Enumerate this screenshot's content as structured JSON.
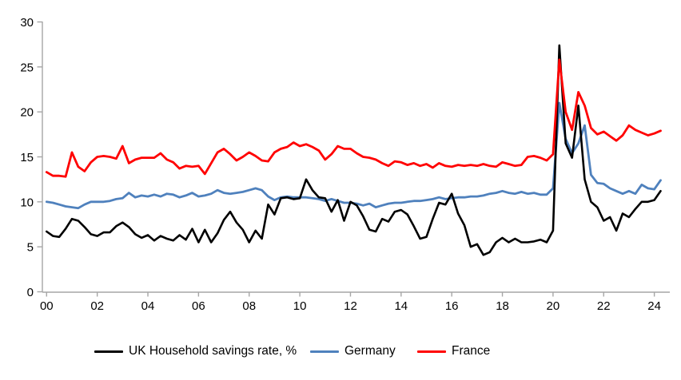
{
  "ui": {
    "axis_color": "#A6A6A6",
    "text_color": "#000000",
    "background": "#FFFFFF"
  },
  "chart_data": {
    "type": "line",
    "title": "",
    "xlabel": "",
    "ylabel": "",
    "grid": false,
    "legend_position": "bottom",
    "x_start": 2000,
    "x_step": 0.25,
    "x_unit": "quarterly, 2000Q1-2024Q2",
    "xlim": [
      2000,
      2024.6
    ],
    "ylim": [
      0,
      30
    ],
    "y_ticks": [
      0,
      5,
      10,
      15,
      20,
      25,
      30
    ],
    "x_tick_labels": [
      "00",
      "02",
      "04",
      "06",
      "08",
      "10",
      "12",
      "14",
      "16",
      "18",
      "20",
      "22",
      "24"
    ],
    "series": [
      {
        "id": "uk",
        "name": "UK Household savings rate, %",
        "color": "#000000",
        "width": 2.6,
        "values": [
          6.7,
          6.2,
          6.1,
          7.0,
          8.1,
          7.9,
          7.2,
          6.4,
          6.2,
          6.6,
          6.6,
          7.3,
          7.7,
          7.2,
          6.4,
          6.0,
          6.3,
          5.7,
          6.2,
          5.9,
          5.7,
          6.3,
          5.8,
          7.0,
          5.5,
          6.9,
          5.5,
          6.5,
          8.0,
          8.9,
          7.7,
          6.9,
          5.5,
          6.8,
          5.9,
          9.7,
          8.6,
          10.4,
          10.5,
          10.3,
          10.4,
          12.5,
          11.3,
          10.5,
          10.4,
          8.9,
          10.2,
          7.9,
          10.0,
          9.6,
          8.4,
          6.9,
          6.7,
          8.1,
          7.8,
          8.9,
          9.1,
          8.6,
          7.3,
          5.9,
          6.1,
          8.1,
          9.9,
          9.7,
          10.9,
          8.7,
          7.4,
          5.0,
          5.3,
          4.1,
          4.4,
          5.5,
          6.0,
          5.5,
          5.9,
          5.5,
          5.5,
          5.6,
          5.8,
          5.5,
          6.8,
          27.4,
          16.5,
          14.9,
          20.7,
          12.5,
          10.0,
          9.4,
          7.9,
          8.3,
          6.8,
          8.7,
          8.3,
          9.2,
          10.0,
          10.0,
          10.2,
          11.2
        ]
      },
      {
        "id": "germany",
        "name": "Germany",
        "color": "#4F81BD",
        "width": 2.8,
        "values": [
          10.0,
          9.9,
          9.7,
          9.5,
          9.4,
          9.3,
          9.7,
          10.0,
          10.0,
          10.0,
          10.1,
          10.3,
          10.4,
          11.0,
          10.5,
          10.7,
          10.6,
          10.8,
          10.6,
          10.9,
          10.8,
          10.5,
          10.7,
          11.0,
          10.6,
          10.7,
          10.9,
          11.3,
          11.0,
          10.9,
          11.0,
          11.1,
          11.3,
          11.5,
          11.3,
          10.6,
          10.2,
          10.5,
          10.6,
          10.5,
          10.5,
          10.5,
          10.4,
          10.3,
          10.1,
          10.3,
          10.1,
          9.9,
          9.9,
          9.8,
          9.6,
          9.8,
          9.4,
          9.6,
          9.8,
          9.9,
          9.9,
          10.0,
          10.1,
          10.1,
          10.2,
          10.3,
          10.5,
          10.3,
          10.4,
          10.5,
          10.5,
          10.6,
          10.6,
          10.7,
          10.9,
          11.0,
          11.2,
          11.0,
          10.9,
          11.1,
          10.9,
          11.0,
          10.8,
          10.8,
          11.5,
          21.0,
          17.0,
          15.4,
          16.5,
          18.5,
          13.0,
          12.1,
          12.0,
          11.5,
          11.2,
          10.9,
          11.2,
          10.9,
          11.9,
          11.5,
          11.4,
          12.4
        ]
      },
      {
        "id": "france",
        "name": "France",
        "color": "#FF0000",
        "width": 2.8,
        "values": [
          13.3,
          12.9,
          12.9,
          12.8,
          15.5,
          13.9,
          13.4,
          14.4,
          15.0,
          15.1,
          15.0,
          14.8,
          16.2,
          14.3,
          14.7,
          14.9,
          14.9,
          14.9,
          15.4,
          14.7,
          14.4,
          13.7,
          14.0,
          13.9,
          14.0,
          13.1,
          14.3,
          15.5,
          15.9,
          15.3,
          14.6,
          15.0,
          15.5,
          15.1,
          14.6,
          14.5,
          15.5,
          15.9,
          16.1,
          16.6,
          16.2,
          16.4,
          16.1,
          15.7,
          14.7,
          15.3,
          16.2,
          15.9,
          15.9,
          15.4,
          15.0,
          14.9,
          14.7,
          14.3,
          14.0,
          14.5,
          14.4,
          14.1,
          14.3,
          14.0,
          14.2,
          13.8,
          14.3,
          14.0,
          13.9,
          14.1,
          14.0,
          14.1,
          14.0,
          14.2,
          14.0,
          13.9,
          14.4,
          14.2,
          14.0,
          14.1,
          15.0,
          15.1,
          14.9,
          14.6,
          15.3,
          25.8,
          20.0,
          18.0,
          22.2,
          20.7,
          18.2,
          17.5,
          17.8,
          17.3,
          16.8,
          17.4,
          18.5,
          18.0,
          17.7,
          17.4,
          17.6,
          17.9
        ]
      }
    ]
  },
  "legend": {
    "items_note": "legend labels mirror series names"
  }
}
